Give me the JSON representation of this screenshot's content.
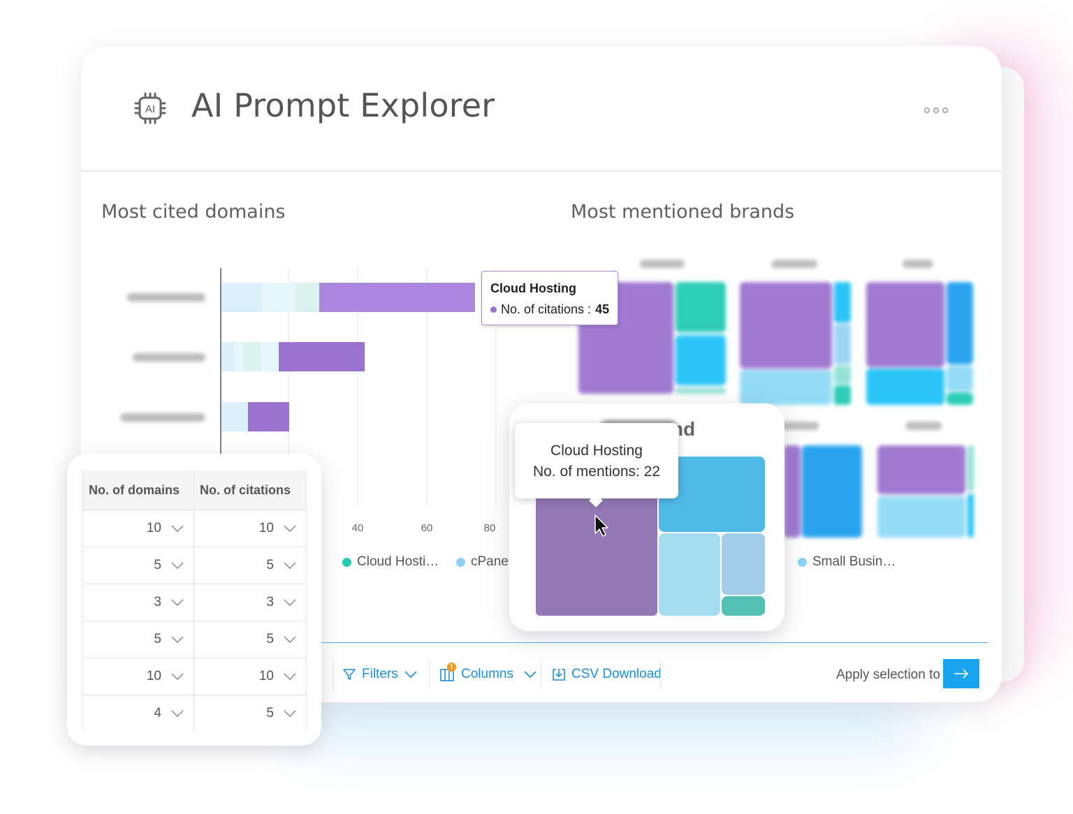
{
  "app": {
    "title": "AI Prompt Explorer",
    "icon_label": "AI",
    "icon": "ai-chip-icon",
    "menu_icon": "more-dots-icon"
  },
  "domains_panel": {
    "title": "Most cited domains"
  },
  "brands_panel": {
    "title": "Most mentioned brands"
  },
  "chart_data": [
    {
      "type": "bar",
      "orientation": "horizontal",
      "stacked": true,
      "title": "Most cited domains",
      "x_ticks": [
        "40",
        "60",
        "80"
      ],
      "legend_visible": [
        "Cloud Hosti…",
        "cPane"
      ],
      "highlighted": {
        "series": "Cloud Hosting",
        "label": "No. of citations",
        "value": 45
      },
      "series_colors": {
        "Cloud Hosting": "#9b72cf"
      },
      "approx_bars": [
        {
          "segments": [
            12,
            10,
            7,
            45
          ]
        },
        {
          "segments": [
            4,
            3,
            5,
            5,
            25
          ]
        },
        {
          "segments": [
            8,
            12
          ]
        }
      ]
    },
    {
      "type": "treemap",
      "title": "Most mentioned brands",
      "legend_visible": [
        "Small Busin…"
      ],
      "highlighted": {
        "series": "Cloud Hosting",
        "label": "No. of mentions",
        "value": 22
      }
    }
  ],
  "bar_tooltip": {
    "title": "Cloud Hosting",
    "label": "No. of citations :",
    "value": "45"
  },
  "treemap_tooltip": {
    "line1": "Cloud Hosting",
    "line2": "No. of mentions: 22"
  },
  "treemap_zoom": {
    "partial_label": "nd"
  },
  "toolbar": {
    "filters": "Filters",
    "columns": "Columns",
    "columns_badge": "!",
    "csv": "CSV Download",
    "apply_text": "Apply selection to"
  },
  "table": {
    "headers": [
      "No. of domains",
      "No. of citations"
    ],
    "rows": [
      [
        "10",
        "10"
      ],
      [
        "5",
        "5"
      ],
      [
        "3",
        "3"
      ],
      [
        "5",
        "5"
      ],
      [
        "10",
        "10"
      ],
      [
        "4",
        "5"
      ]
    ]
  },
  "colors": {
    "purple": "#9b72cf",
    "teal": "#22cbb4",
    "sky": "#1fc1f7",
    "blue": "#1e9fee",
    "light_blue": "#8fdaf6",
    "accent": "#1a8fe0"
  }
}
